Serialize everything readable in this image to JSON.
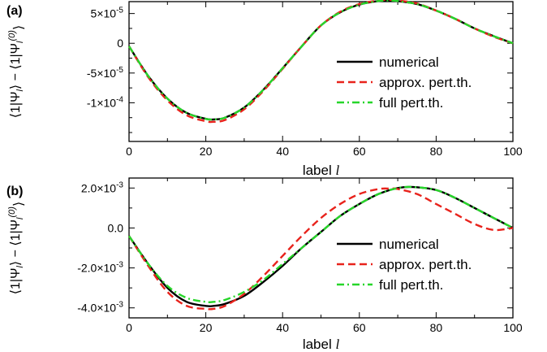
{
  "chart_data": [
    {
      "panel_label": "(a)",
      "type": "line",
      "xlabel": "label l",
      "ylabel": "⟨1|Ψl⟩ − ⟨1|Ψl(0)⟩",
      "xlim": [
        0,
        100
      ],
      "ylim": [
        -0.000165,
        7e-05
      ],
      "x_ticks": [
        "0",
        "20",
        "40",
        "60",
        "80",
        "100"
      ],
      "y_ticks": [
        {
          "value": 5e-05,
          "label": "5×10^-5"
        },
        {
          "value": 0,
          "label": "0"
        },
        {
          "value": -5e-05,
          "label": "-5×10^-5"
        },
        {
          "value": -0.0001,
          "label": "-1×10^-4"
        }
      ],
      "legend_position": "right",
      "series": [
        {
          "name": "numerical",
          "color": "#000000",
          "style": "solid",
          "x": [
            0,
            5,
            10,
            15,
            20,
            22,
            25,
            30,
            35,
            40,
            45,
            50,
            55,
            60,
            65,
            68,
            70,
            75,
            80,
            85,
            90,
            95,
            100
          ],
          "y": [
            -5e-06,
            -5.5e-05,
            -9.3e-05,
            -0.000117,
            -0.000127,
            -0.000128,
            -0.000125,
            -0.000108,
            -7.8e-05,
            -4.2e-05,
            -5e-06,
            3e-05,
            5.2e-05,
            6.5e-05,
            7.1e-05,
            7.2e-05,
            7.1e-05,
            6.6e-05,
            5.5e-05,
            4.1e-05,
            2.5e-05,
            1.2e-05,
            0.0
          ]
        },
        {
          "name": "approx. pert.th.",
          "color": "#e8231c",
          "style": "dashed",
          "x": [
            0,
            5,
            10,
            15,
            20,
            22,
            25,
            30,
            35,
            40,
            45,
            50,
            55,
            60,
            65,
            68,
            70,
            75,
            80,
            85,
            90,
            95,
            100
          ],
          "y": [
            -5e-06,
            -5.7e-05,
            -9.6e-05,
            -0.000121,
            -0.000131,
            -0.000132,
            -0.000129,
            -0.000111,
            -8e-05,
            -4.3e-05,
            -5e-06,
            3e-05,
            5.3e-05,
            6.6e-05,
            7.2e-05,
            7.3e-05,
            7.2e-05,
            6.7e-05,
            5.5e-05,
            4.1e-05,
            2.5e-05,
            1.1e-05,
            0.0
          ]
        },
        {
          "name": "full pert.th.",
          "color": "#27d62a",
          "style": "dashdot",
          "x": [
            0,
            5,
            10,
            15,
            20,
            22,
            25,
            30,
            35,
            40,
            45,
            50,
            55,
            60,
            65,
            68,
            70,
            75,
            80,
            85,
            90,
            95,
            100
          ],
          "y": [
            -5e-06,
            -5.5e-05,
            -9.3e-05,
            -0.000117,
            -0.000127,
            -0.000128,
            -0.000125,
            -0.000108,
            -7.8e-05,
            -4.2e-05,
            -5e-06,
            3e-05,
            5.2e-05,
            6.5e-05,
            7.1e-05,
            7.2e-05,
            7.1e-05,
            6.6e-05,
            5.5e-05,
            4.1e-05,
            2.5e-05,
            1.2e-05,
            0.0
          ]
        }
      ]
    },
    {
      "panel_label": "(b)",
      "type": "line",
      "xlabel": "label l",
      "ylabel": "⟨1|Ψl⟩ − ⟨1|Ψl(0)⟩",
      "xlim": [
        0,
        100
      ],
      "ylim": [
        -0.0045,
        0.0025
      ],
      "x_ticks": [
        "0",
        "20",
        "40",
        "60",
        "80",
        "100"
      ],
      "y_ticks": [
        {
          "value": 0.002,
          "label": "2.0×10^-3"
        },
        {
          "value": 0,
          "label": "0.0"
        },
        {
          "value": -0.002,
          "label": "-2.0×10^-3"
        },
        {
          "value": -0.004,
          "label": "-4.0×10^-3"
        }
      ],
      "legend_position": "right",
      "series": [
        {
          "name": "numerical",
          "color": "#000000",
          "style": "solid",
          "x": [
            0,
            5,
            10,
            15,
            20,
            22,
            25,
            30,
            35,
            40,
            45,
            50,
            55,
            60,
            65,
            70,
            74,
            80,
            85,
            90,
            95,
            100
          ],
          "y": [
            -0.0004,
            -0.0018,
            -0.003,
            -0.0037,
            -0.0039,
            -0.0039,
            -0.0038,
            -0.0034,
            -0.0027,
            -0.0019,
            -0.001,
            -0.0002,
            0.0006,
            0.0012,
            0.0017,
            0.002,
            0.00205,
            0.0019,
            0.0015,
            0.001,
            0.0005,
            0.0
          ]
        },
        {
          "name": "approx. pert.th.",
          "color": "#e8231c",
          "style": "dashed",
          "x": [
            0,
            5,
            10,
            15,
            20,
            22,
            25,
            30,
            35,
            40,
            45,
            50,
            55,
            60,
            65,
            68,
            70,
            75,
            80,
            85,
            90,
            95,
            100
          ],
          "y": [
            -0.0004,
            -0.0019,
            -0.0032,
            -0.0039,
            -0.00405,
            -0.00405,
            -0.0039,
            -0.0033,
            -0.0024,
            -0.0014,
            -0.0004,
            0.0005,
            0.0012,
            0.0017,
            0.00195,
            0.00197,
            0.00195,
            0.0017,
            0.0012,
            0.0007,
            0.0002,
            -0.0001,
            0.0
          ]
        },
        {
          "name": "full pert.th.",
          "color": "#27d62a",
          "style": "dashdot",
          "x": [
            0,
            5,
            10,
            15,
            20,
            22,
            25,
            30,
            35,
            40,
            45,
            50,
            55,
            60,
            65,
            70,
            74,
            80,
            85,
            90,
            95,
            100
          ],
          "y": [
            -0.0004,
            -0.0018,
            -0.0029,
            -0.0035,
            -0.0037,
            -0.0037,
            -0.0036,
            -0.0032,
            -0.0026,
            -0.0018,
            -0.001,
            -0.0002,
            0.0006,
            0.0012,
            0.0017,
            0.002,
            0.00205,
            0.0019,
            0.0015,
            0.001,
            0.0005,
            0.0
          ]
        }
      ]
    }
  ]
}
